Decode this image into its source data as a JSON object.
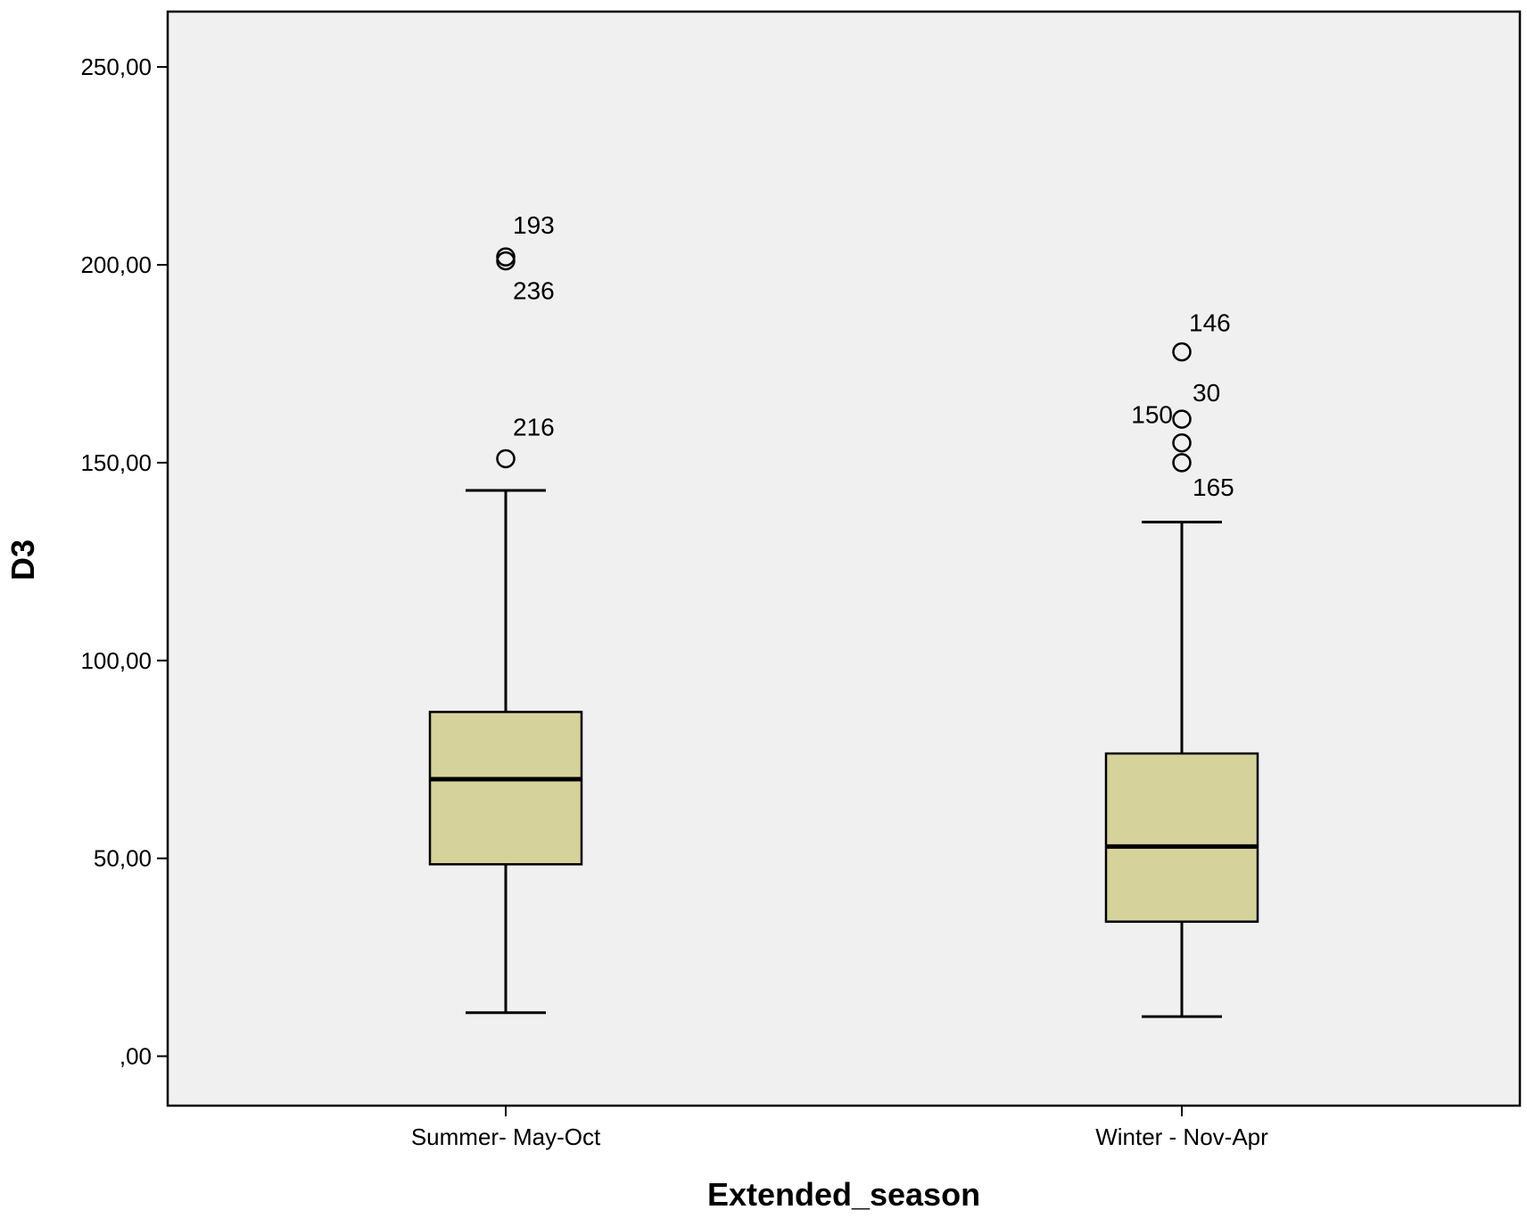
{
  "chart_data": {
    "type": "boxplot",
    "xlabel": "Extended_season",
    "ylabel": "D3",
    "ylim": [
      -12.5,
      264
    ],
    "yticks": [
      0,
      50,
      100,
      150,
      200,
      250
    ],
    "ytick_labels": [
      ",00",
      "50,00",
      "100,00",
      "150,00",
      "200,00",
      "250,00"
    ],
    "grid": false,
    "colors": {
      "box_fill": "#D6D29C",
      "plot_bg": "#F0F0F0",
      "stroke": "#000000"
    },
    "categories": [
      "Summer- May-Oct",
      "Winter - Nov-Apr"
    ],
    "boxes": [
      {
        "category": "Summer- May-Oct",
        "whisker_low": 11,
        "q1": 48.5,
        "median": 70,
        "q3": 87,
        "whisker_high": 143,
        "outliers": [
          {
            "value": 202,
            "label": "193"
          },
          {
            "value": 201,
            "label": "236"
          },
          {
            "value": 151,
            "label": "216"
          }
        ]
      },
      {
        "category": "Winter - Nov-Apr",
        "whisker_low": 10,
        "q1": 34,
        "median": 53,
        "q3": 76.5,
        "whisker_high": 135,
        "outliers": [
          {
            "value": 178,
            "label": "146"
          },
          {
            "value": 161,
            "label": "30"
          },
          {
            "value": 155,
            "label": "150"
          },
          {
            "value": 150,
            "label": "165"
          }
        ]
      }
    ]
  }
}
